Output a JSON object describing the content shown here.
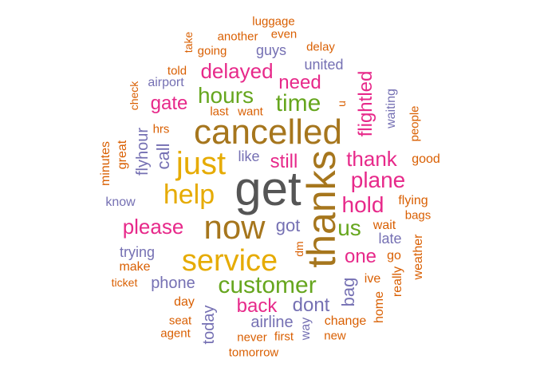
{
  "palette": {
    "orange": "#d95f02",
    "purple": "#7570b3",
    "magenta": "#e7298a",
    "green": "#66a61e",
    "gold": "#e6ab02",
    "brown": "#a6761d",
    "gray": "#555555"
  },
  "words": [
    {
      "text": "get",
      "color": "gray",
      "weight": 1.0,
      "vertical": false
    },
    {
      "text": "thanks",
      "color": "brown",
      "weight": 0.9,
      "vertical": true
    },
    {
      "text": "cancelled",
      "color": "brown",
      "weight": 0.8,
      "vertical": false
    },
    {
      "text": "now",
      "color": "brown",
      "weight": 0.78,
      "vertical": false
    },
    {
      "text": "just",
      "color": "gold",
      "weight": 0.75,
      "vertical": false
    },
    {
      "text": "service",
      "color": "gold",
      "weight": 0.73,
      "vertical": false
    },
    {
      "text": "help",
      "color": "gold",
      "weight": 0.65,
      "vertical": false
    },
    {
      "text": "customer",
      "color": "green",
      "weight": 0.6,
      "vertical": false
    },
    {
      "text": "time",
      "color": "green",
      "weight": 0.55,
      "vertical": false
    },
    {
      "text": "hours",
      "color": "green",
      "weight": 0.52,
      "vertical": false
    },
    {
      "text": "plane",
      "color": "magenta",
      "weight": 0.5,
      "vertical": false
    },
    {
      "text": "hold",
      "color": "magenta",
      "weight": 0.5,
      "vertical": false
    },
    {
      "text": "us",
      "color": "green",
      "weight": 0.5,
      "vertical": false
    },
    {
      "text": "thank",
      "color": "magenta",
      "weight": 0.48,
      "vertical": false
    },
    {
      "text": "please",
      "color": "magenta",
      "weight": 0.48,
      "vertical": false
    },
    {
      "text": "delayed",
      "color": "magenta",
      "weight": 0.47,
      "vertical": false
    },
    {
      "text": "flightled",
      "color": "magenta",
      "weight": 0.45,
      "vertical": true
    },
    {
      "text": "one",
      "color": "magenta",
      "weight": 0.45,
      "vertical": false
    },
    {
      "text": "back",
      "color": "magenta",
      "weight": 0.45,
      "vertical": false
    },
    {
      "text": "gate",
      "color": "magenta",
      "weight": 0.42,
      "vertical": false
    },
    {
      "text": "need",
      "color": "magenta",
      "weight": 0.42,
      "vertical": false
    },
    {
      "text": "still",
      "color": "magenta",
      "weight": 0.42,
      "vertical": false
    },
    {
      "text": "dont",
      "color": "purple",
      "weight": 0.42,
      "vertical": false
    },
    {
      "text": "got",
      "color": "purple",
      "weight": 0.42,
      "vertical": false
    },
    {
      "text": "bag",
      "color": "purple",
      "weight": 0.4,
      "vertical": true
    },
    {
      "text": "call",
      "color": "purple",
      "weight": 0.38,
      "vertical": true
    },
    {
      "text": "flyhour",
      "color": "purple",
      "weight": 0.35,
      "vertical": true
    },
    {
      "text": "today",
      "color": "purple",
      "weight": 0.35,
      "vertical": true
    },
    {
      "text": "phone",
      "color": "purple",
      "weight": 0.33,
      "vertical": false
    },
    {
      "text": "airline",
      "color": "purple",
      "weight": 0.33,
      "vertical": false
    },
    {
      "text": "late",
      "color": "purple",
      "weight": 0.33,
      "vertical": false
    },
    {
      "text": "like",
      "color": "purple",
      "weight": 0.33,
      "vertical": false
    },
    {
      "text": "united",
      "color": "purple",
      "weight": 0.3,
      "vertical": false
    },
    {
      "text": "guys",
      "color": "purple",
      "weight": 0.3,
      "vertical": false
    },
    {
      "text": "waiting",
      "color": "purple",
      "weight": 0.3,
      "vertical": true
    },
    {
      "text": "trying",
      "color": "purple",
      "weight": 0.3,
      "vertical": false
    },
    {
      "text": "know",
      "color": "purple",
      "weight": 0.28,
      "vertical": false
    },
    {
      "text": "airport",
      "color": "purple",
      "weight": 0.28,
      "vertical": false
    },
    {
      "text": "way",
      "color": "purple",
      "weight": 0.28,
      "vertical": true
    },
    {
      "text": "wait",
      "color": "orange",
      "weight": 0.26,
      "vertical": false
    },
    {
      "text": "go",
      "color": "orange",
      "weight": 0.26,
      "vertical": false
    },
    {
      "text": "great",
      "color": "orange",
      "weight": 0.26,
      "vertical": true
    },
    {
      "text": "minutes",
      "color": "orange",
      "weight": 0.26,
      "vertical": true
    },
    {
      "text": "make",
      "color": "orange",
      "weight": 0.26,
      "vertical": false
    },
    {
      "text": "day",
      "color": "orange",
      "weight": 0.26,
      "vertical": false
    },
    {
      "text": "ive",
      "color": "orange",
      "weight": 0.26,
      "vertical": false
    },
    {
      "text": "home",
      "color": "orange",
      "weight": 0.26,
      "vertical": true
    },
    {
      "text": "really",
      "color": "orange",
      "weight": 0.26,
      "vertical": true
    },
    {
      "text": "weather",
      "color": "orange",
      "weight": 0.26,
      "vertical": true
    },
    {
      "text": "flying",
      "color": "orange",
      "weight": 0.26,
      "vertical": false
    },
    {
      "text": "bags",
      "color": "orange",
      "weight": 0.24,
      "vertical": false
    },
    {
      "text": "good",
      "color": "orange",
      "weight": 0.24,
      "vertical": false
    },
    {
      "text": "people",
      "color": "orange",
      "weight": 0.24,
      "vertical": true
    },
    {
      "text": "change",
      "color": "orange",
      "weight": 0.24,
      "vertical": false
    },
    {
      "text": "seat",
      "color": "orange",
      "weight": 0.24,
      "vertical": false
    },
    {
      "text": "agent",
      "color": "orange",
      "weight": 0.24,
      "vertical": false
    },
    {
      "text": "never",
      "color": "orange",
      "weight": 0.24,
      "vertical": false
    },
    {
      "text": "first",
      "color": "orange",
      "weight": 0.24,
      "vertical": false
    },
    {
      "text": "new",
      "color": "orange",
      "weight": 0.24,
      "vertical": false
    },
    {
      "text": "tomorrow",
      "color": "orange",
      "weight": 0.24,
      "vertical": false
    },
    {
      "text": "ticket",
      "color": "orange",
      "weight": 0.22,
      "vertical": false
    },
    {
      "text": "dm",
      "color": "orange",
      "weight": 0.22,
      "vertical": true
    },
    {
      "text": "hrs",
      "color": "orange",
      "weight": 0.24,
      "vertical": false
    },
    {
      "text": "last",
      "color": "orange",
      "weight": 0.24,
      "vertical": false
    },
    {
      "text": "want",
      "color": "orange",
      "weight": 0.22,
      "vertical": false
    },
    {
      "text": "u",
      "color": "orange",
      "weight": 0.22,
      "vertical": true
    },
    {
      "text": "told",
      "color": "orange",
      "weight": 0.22,
      "vertical": false
    },
    {
      "text": "check",
      "color": "orange",
      "weight": 0.22,
      "vertical": true
    },
    {
      "text": "going",
      "color": "orange",
      "weight": 0.24,
      "vertical": false
    },
    {
      "text": "take",
      "color": "orange",
      "weight": 0.22,
      "vertical": true
    },
    {
      "text": "another",
      "color": "orange",
      "weight": 0.22,
      "vertical": false
    },
    {
      "text": "even",
      "color": "orange",
      "weight": 0.22,
      "vertical": false
    },
    {
      "text": "luggage",
      "color": "orange",
      "weight": 0.22,
      "vertical": false
    },
    {
      "text": "delay",
      "color": "orange",
      "weight": 0.22,
      "vertical": false
    }
  ]
}
